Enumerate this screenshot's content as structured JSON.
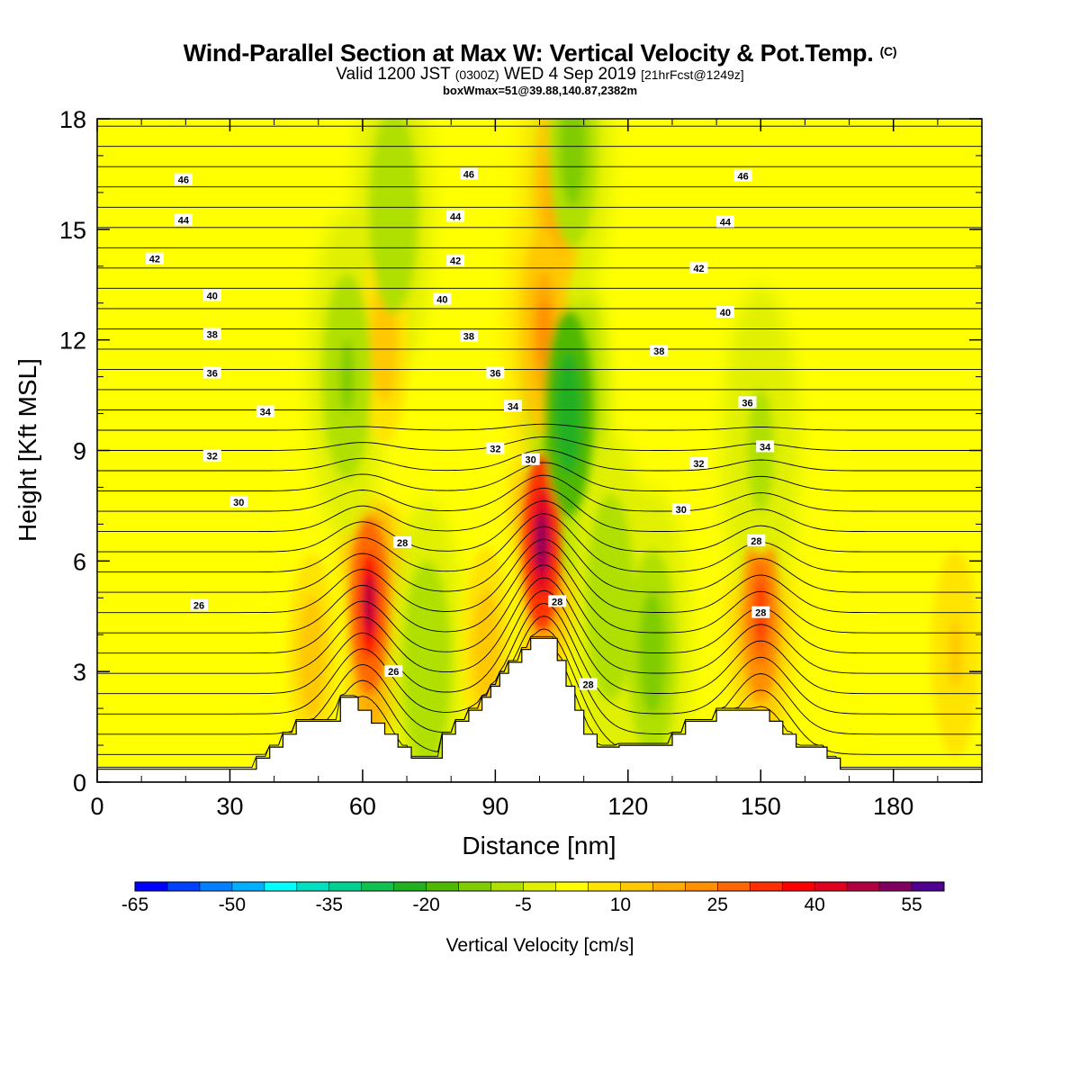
{
  "title": {
    "main": "Wind-Parallel Section at Max W: Vertical Velocity & Pot.Temp.",
    "copyright": "(C)",
    "valid_prefix": "Valid 1200 JST",
    "valid_utc": "(0300Z)",
    "valid_date": "WED 4 Sep 2019",
    "forecast": "[21hrFcst@1249z]",
    "box_info": "boxWmax=51@39.88,140.87,2382m"
  },
  "chart_data": {
    "type": "heatmap",
    "xlabel": "Distance [nm]",
    "ylabel": "Height [Kft MSL]",
    "xlim": [
      0,
      200
    ],
    "ylim": [
      0,
      18
    ],
    "x_ticks": [
      0,
      30,
      60,
      90,
      120,
      150,
      180
    ],
    "y_ticks": [
      0,
      3,
      6,
      9,
      12,
      15,
      18
    ],
    "colorbar": {
      "title": "Vertical Velocity [cm/s]",
      "levels": [
        -65,
        -60,
        -55,
        -50,
        -45,
        -40,
        -35,
        -30,
        -25,
        -20,
        -15,
        -10,
        -5,
        0,
        5,
        10,
        15,
        20,
        25,
        30,
        35,
        40,
        45,
        50,
        55,
        60
      ],
      "tick_labels": [
        "-65",
        "-50",
        "-35",
        "-20",
        "-5",
        "10",
        "25",
        "40",
        "55"
      ],
      "colors": [
        "#0000ff",
        "#0040ff",
        "#0080ff",
        "#00b0ff",
        "#00ffff",
        "#00e0c0",
        "#00d090",
        "#10c050",
        "#20b020",
        "#50b800",
        "#80cc00",
        "#b0e000",
        "#e0f000",
        "#ffff00",
        "#ffe400",
        "#ffc800",
        "#ffac00",
        "#ff9000",
        "#ff6800",
        "#ff3000",
        "#ff0000",
        "#e00020",
        "#b00040",
        "#800060",
        "#500090"
      ]
    },
    "terrain_kft": [
      [
        0,
        0.35
      ],
      [
        36,
        0.35
      ],
      [
        36,
        0.65
      ],
      [
        39,
        0.65
      ],
      [
        39,
        0.95
      ],
      [
        42,
        0.95
      ],
      [
        42,
        1.3
      ],
      [
        45,
        1.3
      ],
      [
        45,
        1.65
      ],
      [
        55,
        1.65
      ],
      [
        55,
        2.3
      ],
      [
        59,
        2.3
      ],
      [
        59,
        1.95
      ],
      [
        62,
        1.95
      ],
      [
        62,
        1.6
      ],
      [
        65,
        1.6
      ],
      [
        65,
        1.3
      ],
      [
        68,
        1.3
      ],
      [
        68,
        0.95
      ],
      [
        71,
        0.95
      ],
      [
        71,
        0.65
      ],
      [
        78,
        0.65
      ],
      [
        78,
        1.3
      ],
      [
        81,
        1.3
      ],
      [
        81,
        1.65
      ],
      [
        84,
        1.65
      ],
      [
        84,
        1.95
      ],
      [
        87,
        1.95
      ],
      [
        87,
        2.3
      ],
      [
        89,
        2.3
      ],
      [
        89,
        2.6
      ],
      [
        91,
        2.6
      ],
      [
        91,
        2.95
      ],
      [
        93,
        2.95
      ],
      [
        93,
        3.25
      ],
      [
        96,
        3.25
      ],
      [
        96,
        3.6
      ],
      [
        98,
        3.6
      ],
      [
        98,
        3.9
      ],
      [
        104,
        3.9
      ],
      [
        104,
        3.3
      ],
      [
        106,
        3.3
      ],
      [
        106,
        2.6
      ],
      [
        108,
        2.6
      ],
      [
        108,
        1.95
      ],
      [
        110,
        1.95
      ],
      [
        110,
        1.3
      ],
      [
        113,
        1.3
      ],
      [
        113,
        0.95
      ],
      [
        118,
        0.95
      ],
      [
        118,
        1.0
      ],
      [
        130,
        1.0
      ],
      [
        130,
        1.3
      ],
      [
        133,
        1.3
      ],
      [
        133,
        1.65
      ],
      [
        140,
        1.65
      ],
      [
        140,
        1.95
      ],
      [
        152,
        1.95
      ],
      [
        152,
        1.65
      ],
      [
        155,
        1.65
      ],
      [
        155,
        1.3
      ],
      [
        158,
        1.3
      ],
      [
        158,
        0.95
      ],
      [
        165,
        0.95
      ],
      [
        165,
        0.65
      ],
      [
        168,
        0.65
      ],
      [
        168,
        0.35
      ],
      [
        200,
        0.35
      ]
    ],
    "updraft_cores": [
      {
        "x": 61.5,
        "z": 4.8,
        "w": 46
      },
      {
        "x": 100.5,
        "z": 6.5,
        "w": 51
      },
      {
        "x": 150.0,
        "z": 4.6,
        "w": 32
      },
      {
        "x": 48.5,
        "z": 3.4,
        "w": 14
      },
      {
        "x": 88.0,
        "z": 3.6,
        "w": 14
      },
      {
        "x": 104.0,
        "z": 16.0,
        "w": 18
      },
      {
        "x": 101.0,
        "z": 12.2,
        "w": 22
      },
      {
        "x": 65.0,
        "z": 12.0,
        "w": 12
      },
      {
        "x": 194.0,
        "z": 3.5,
        "w": 10
      }
    ],
    "downdraft_cores": [
      {
        "x": 74.5,
        "z": 3.2,
        "w": -10
      },
      {
        "x": 106.5,
        "z": 10.0,
        "w": -24
      },
      {
        "x": 107.5,
        "z": 17.3,
        "w": -12
      },
      {
        "x": 125.5,
        "z": 3.5,
        "w": -14
      },
      {
        "x": 116.0,
        "z": 5.0,
        "w": -9
      },
      {
        "x": 56.5,
        "z": 11.0,
        "w": -11
      },
      {
        "x": 67.0,
        "z": 15.5,
        "w": -8
      },
      {
        "x": 150.0,
        "z": 9.0,
        "w": -6
      }
    ],
    "theta_contour_labels": [
      {
        "text": "46",
        "x": 19.5,
        "z": 16.35
      },
      {
        "text": "44",
        "x": 19.5,
        "z": 15.25
      },
      {
        "text": "42",
        "x": 13,
        "z": 14.2
      },
      {
        "text": "40",
        "x": 26,
        "z": 13.2
      },
      {
        "text": "38",
        "x": 26,
        "z": 12.15
      },
      {
        "text": "36",
        "x": 26,
        "z": 11.1
      },
      {
        "text": "34",
        "x": 38,
        "z": 10.05
      },
      {
        "text": "32",
        "x": 26,
        "z": 8.85
      },
      {
        "text": "30",
        "x": 32,
        "z": 7.6
      },
      {
        "text": "26",
        "x": 23,
        "z": 4.8
      },
      {
        "text": "46",
        "x": 84,
        "z": 16.5
      },
      {
        "text": "44",
        "x": 81,
        "z": 15.35
      },
      {
        "text": "42",
        "x": 81,
        "z": 14.15
      },
      {
        "text": "40",
        "x": 78,
        "z": 13.1
      },
      {
        "text": "38",
        "x": 84,
        "z": 12.1
      },
      {
        "text": "36",
        "x": 90,
        "z": 11.1
      },
      {
        "text": "34",
        "x": 94,
        "z": 10.2
      },
      {
        "text": "32",
        "x": 90,
        "z": 9.05
      },
      {
        "text": "30",
        "x": 98,
        "z": 8.75
      },
      {
        "text": "28",
        "x": 69,
        "z": 6.5
      },
      {
        "text": "26",
        "x": 67,
        "z": 3.0
      },
      {
        "text": "28",
        "x": 104,
        "z": 4.9
      },
      {
        "text": "28",
        "x": 111,
        "z": 2.65
      },
      {
        "text": "46",
        "x": 146,
        "z": 16.45
      },
      {
        "text": "44",
        "x": 142,
        "z": 15.2
      },
      {
        "text": "42",
        "x": 136,
        "z": 13.95
      },
      {
        "text": "40",
        "x": 142,
        "z": 12.75
      },
      {
        "text": "38",
        "x": 127,
        "z": 11.7
      },
      {
        "text": "36",
        "x": 147,
        "z": 10.3
      },
      {
        "text": "34",
        "x": 151,
        "z": 9.1
      },
      {
        "text": "32",
        "x": 136,
        "z": 8.65
      },
      {
        "text": "30",
        "x": 132,
        "z": 7.4
      },
      {
        "text": "28",
        "x": 149,
        "z": 6.55
      },
      {
        "text": "28",
        "x": 150,
        "z": 4.6
      }
    ]
  }
}
